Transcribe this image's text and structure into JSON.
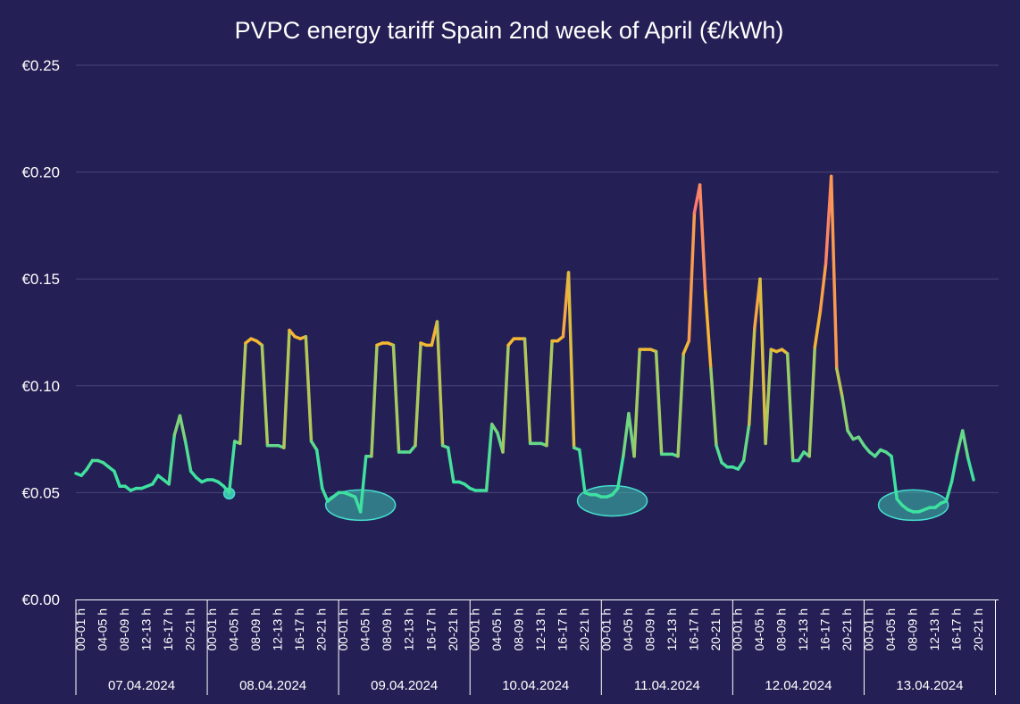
{
  "chart_data": {
    "type": "line",
    "title": "PVPC energy tariff Spain 2nd week of April (€/kWh)",
    "xlabel": "",
    "ylabel": "",
    "ylim": [
      0,
      0.25
    ],
    "y_ticks": [
      "€0.00",
      "€0.05",
      "€0.10",
      "€0.15",
      "€0.20",
      "€0.25"
    ],
    "y_tick_values": [
      0,
      0.05,
      0.1,
      0.15,
      0.2,
      0.25
    ],
    "hour_tick_labels": [
      "00-01 h",
      "04-05 h",
      "08-09 h",
      "12-13 h",
      "16-17 h",
      "20-21 h"
    ],
    "days": [
      "07.04.2024",
      "08.04.2024",
      "09.04.2024",
      "10.04.2024",
      "11.04.2024",
      "12.04.2024",
      "13.04.2024"
    ],
    "grid": true,
    "series": [
      {
        "name": "PVPC",
        "values": [
          0.059,
          0.058,
          0.061,
          0.065,
          0.065,
          0.064,
          0.062,
          0.06,
          0.053,
          0.053,
          0.051,
          0.052,
          0.052,
          0.053,
          0.054,
          0.058,
          0.056,
          0.054,
          0.077,
          0.086,
          0.074,
          0.06,
          0.057,
          0.055,
          0.056,
          0.056,
          0.055,
          0.053,
          0.05,
          0.074,
          0.073,
          0.12,
          0.122,
          0.121,
          0.119,
          0.072,
          0.072,
          0.072,
          0.071,
          0.126,
          0.123,
          0.122,
          0.123,
          0.074,
          0.07,
          0.052,
          0.046,
          0.048,
          0.05,
          0.05,
          0.049,
          0.048,
          0.041,
          0.067,
          0.067,
          0.119,
          0.12,
          0.12,
          0.119,
          0.069,
          0.069,
          0.069,
          0.072,
          0.12,
          0.119,
          0.119,
          0.13,
          0.072,
          0.071,
          0.055,
          0.055,
          0.054,
          0.052,
          0.051,
          0.051,
          0.051,
          0.082,
          0.078,
          0.069,
          0.119,
          0.122,
          0.122,
          0.122,
          0.073,
          0.073,
          0.073,
          0.072,
          0.121,
          0.121,
          0.123,
          0.153,
          0.071,
          0.07,
          0.05,
          0.049,
          0.049,
          0.048,
          0.048,
          0.049,
          0.052,
          0.067,
          0.087,
          0.067,
          0.117,
          0.117,
          0.117,
          0.116,
          0.068,
          0.068,
          0.068,
          0.067,
          0.115,
          0.121,
          0.181,
          0.194,
          0.144,
          0.108,
          0.072,
          0.064,
          0.062,
          0.062,
          0.061,
          0.065,
          0.082,
          0.127,
          0.15,
          0.073,
          0.117,
          0.116,
          0.117,
          0.115,
          0.065,
          0.065,
          0.069,
          0.067,
          0.118,
          0.135,
          0.157,
          0.198,
          0.108,
          0.095,
          0.079,
          0.075,
          0.076,
          0.072,
          0.069,
          0.067,
          0.07,
          0.069,
          0.067,
          0.047,
          0.044,
          0.042,
          0.041,
          0.041,
          0.042,
          0.043,
          0.043,
          0.045,
          0.046,
          0.055,
          0.068,
          0.079,
          0.066,
          0.056
        ]
      }
    ],
    "highlights": [
      {
        "type": "marker",
        "index": 28,
        "value": 0.05
      },
      {
        "type": "ellipse",
        "center_index": 52,
        "value": 0.045
      },
      {
        "type": "ellipse",
        "center_index": 98,
        "value": 0.047
      },
      {
        "type": "ellipse",
        "center_index": 153,
        "value": 0.045
      }
    ],
    "colors": {
      "background": "#241f54",
      "grid": "#4a4577",
      "line_low": "#3ee1a0",
      "line_mid": "#f4b832",
      "line_high": "#ff6f7d",
      "highlight_fill": "#3cc2b1",
      "highlight_stroke": "#45e0cf"
    }
  }
}
